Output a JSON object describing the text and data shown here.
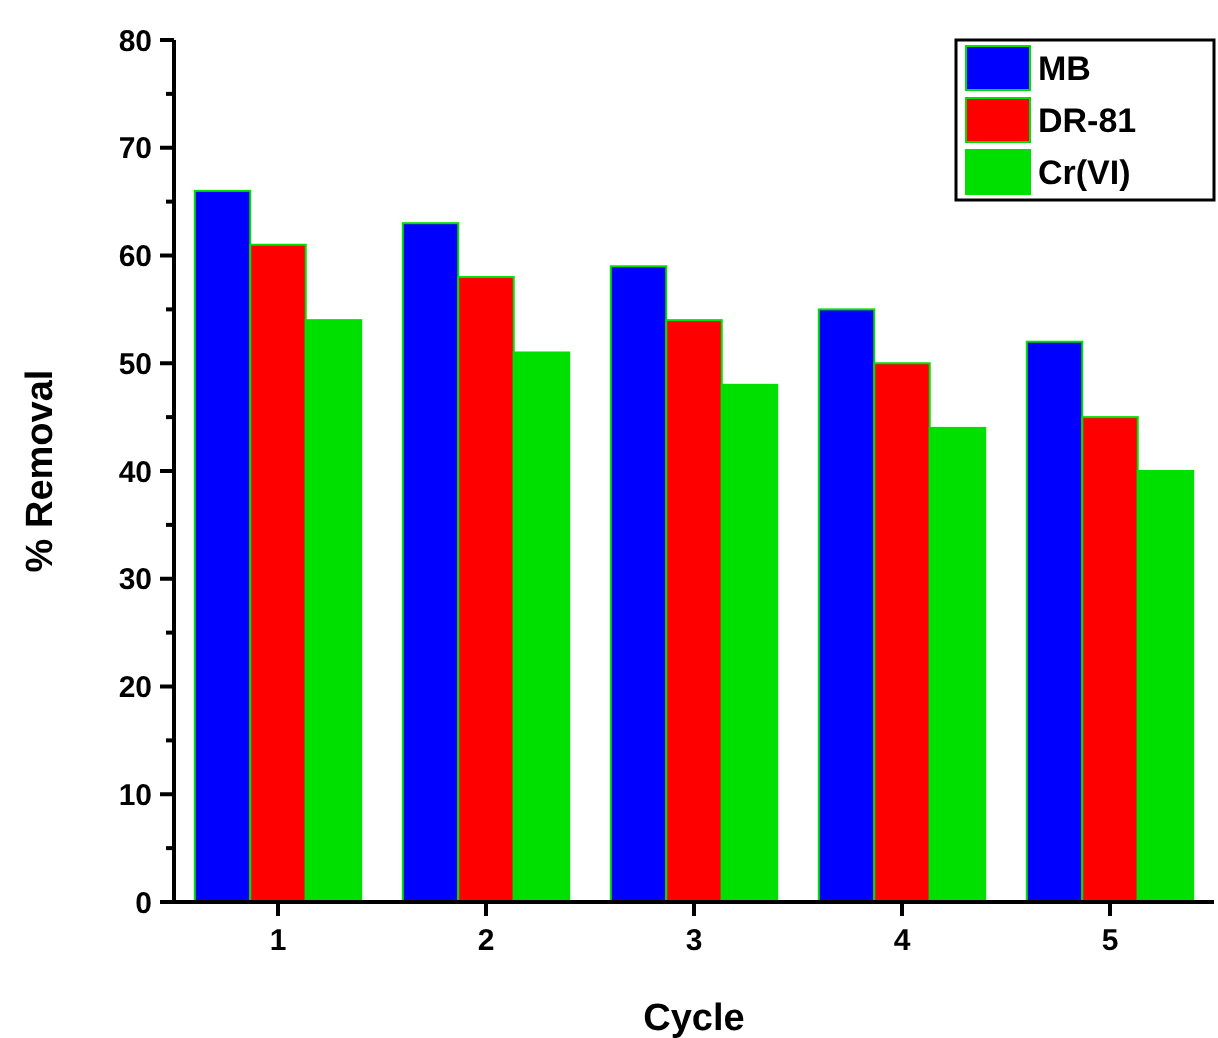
{
  "chart_data": {
    "type": "bar",
    "xlabel": "Cycle",
    "ylabel": "% Removal",
    "categories": [
      "1",
      "2",
      "3",
      "4",
      "5"
    ],
    "series": [
      {
        "name": "MB",
        "color": "#0000ff",
        "values": [
          66,
          63,
          59,
          55,
          52
        ]
      },
      {
        "name": "DR-81",
        "color": "#ff0000",
        "values": [
          61,
          58,
          54,
          50,
          45
        ]
      },
      {
        "name": "Cr(VI)",
        "color": "#00e000",
        "values": [
          54,
          51,
          48,
          44,
          40
        ]
      }
    ],
    "ylim": [
      0,
      80
    ],
    "yticks": [
      0,
      10,
      20,
      30,
      40,
      50,
      60,
      70,
      80
    ],
    "legend": "top right",
    "grid": false
  }
}
